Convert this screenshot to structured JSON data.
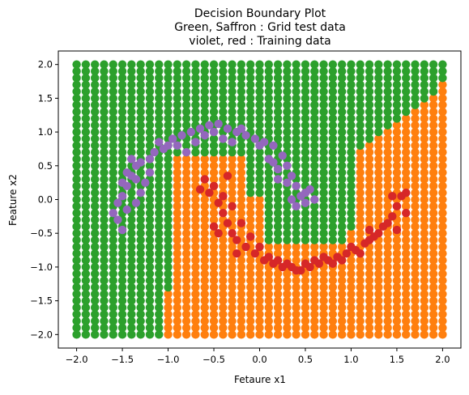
{
  "chart_data": {
    "type": "scatter",
    "title_lines": [
      "Decision Boundary Plot",
      "Green, Saffron : Grid test data",
      "violet, red : Training data"
    ],
    "xlabel": "Fetaure x1",
    "ylabel": "Feature x2",
    "xlim": [
      -2.2,
      2.2
    ],
    "ylim": [
      -2.2,
      2.2
    ],
    "x_ticks": [
      "−2.0",
      "−1.5",
      "−1.0",
      "−0.5",
      "0.0",
      "0.5",
      "1.0",
      "1.5",
      "2.0"
    ],
    "y_ticks": [
      "−2.0",
      "−1.5",
      "−1.0",
      "−0.5",
      "0.0",
      "0.5",
      "1.0",
      "1.5",
      "2.0"
    ],
    "grid": false,
    "grid_points": {
      "x_range": [
        -2.0,
        2.0
      ],
      "y_range": [
        -2.0,
        2.0
      ],
      "step": 0.1,
      "colors": {
        "class0": "#2ca02c",
        "class1": "#ff7f0e"
      }
    },
    "series": [
      {
        "color": "#9467bd",
        "points": [
          [
            -1.55,
            -0.05
          ],
          [
            -1.5,
            0.05
          ],
          [
            -1.45,
            0.2
          ],
          [
            -1.4,
            0.35
          ],
          [
            -1.35,
            0.5
          ],
          [
            -1.3,
            0.55
          ],
          [
            -1.2,
            0.6
          ],
          [
            -1.15,
            0.7
          ],
          [
            -1.05,
            0.75
          ],
          [
            -1.0,
            0.8
          ],
          [
            -0.95,
            0.9
          ],
          [
            -0.85,
            0.95
          ],
          [
            -0.75,
            1.0
          ],
          [
            -0.65,
            1.05
          ],
          [
            -0.55,
            1.1
          ],
          [
            -0.45,
            1.12
          ],
          [
            -0.35,
            1.05
          ],
          [
            -0.25,
            1.0
          ],
          [
            -0.15,
            0.95
          ],
          [
            -0.05,
            0.9
          ],
          [
            0.05,
            0.85
          ],
          [
            0.15,
            0.8
          ],
          [
            0.25,
            0.65
          ],
          [
            0.3,
            0.5
          ],
          [
            0.35,
            0.35
          ],
          [
            0.4,
            0.2
          ],
          [
            0.45,
            0.05
          ],
          [
            0.5,
            -0.05
          ],
          [
            0.55,
            0.15
          ],
          [
            0.6,
            0.0
          ],
          [
            -1.6,
            -0.2
          ],
          [
            -1.55,
            -0.3
          ],
          [
            -1.45,
            -0.15
          ],
          [
            -1.35,
            -0.05
          ],
          [
            -1.3,
            0.1
          ],
          [
            -1.25,
            0.25
          ],
          [
            -1.4,
            0.6
          ],
          [
            -1.1,
            0.85
          ],
          [
            -0.9,
            0.8
          ],
          [
            -0.7,
            0.85
          ],
          [
            -0.6,
            0.95
          ],
          [
            -0.4,
            0.9
          ],
          [
            -0.2,
            1.05
          ],
          [
            0.0,
            0.8
          ],
          [
            0.1,
            0.6
          ],
          [
            0.2,
            0.45
          ],
          [
            0.3,
            0.25
          ],
          [
            0.4,
            -0.1
          ],
          [
            0.5,
            0.1
          ],
          [
            -1.5,
            -0.45
          ],
          [
            -1.45,
            0.4
          ],
          [
            -1.2,
            0.4
          ],
          [
            -0.8,
            0.7
          ],
          [
            -0.5,
            1.0
          ],
          [
            0.2,
            0.3
          ],
          [
            0.35,
            0.0
          ],
          [
            -1.35,
            0.3
          ],
          [
            -1.5,
            0.25
          ],
          [
            -0.3,
            0.85
          ],
          [
            0.15,
            0.55
          ]
        ]
      },
      {
        "color": "#d62728",
        "points": [
          [
            -0.55,
            0.1
          ],
          [
            -0.45,
            -0.05
          ],
          [
            -0.4,
            -0.2
          ],
          [
            -0.35,
            -0.35
          ],
          [
            -0.3,
            -0.5
          ],
          [
            -0.25,
            -0.6
          ],
          [
            -0.15,
            -0.7
          ],
          [
            -0.05,
            -0.8
          ],
          [
            0.05,
            -0.9
          ],
          [
            0.15,
            -0.95
          ],
          [
            0.25,
            -1.0
          ],
          [
            0.35,
            -1.0
          ],
          [
            0.45,
            -1.05
          ],
          [
            0.55,
            -1.0
          ],
          [
            0.65,
            -0.95
          ],
          [
            0.75,
            -0.9
          ],
          [
            0.85,
            -0.85
          ],
          [
            0.95,
            -0.8
          ],
          [
            1.05,
            -0.75
          ],
          [
            1.15,
            -0.65
          ],
          [
            1.25,
            -0.55
          ],
          [
            1.35,
            -0.4
          ],
          [
            1.45,
            -0.25
          ],
          [
            1.5,
            -0.1
          ],
          [
            1.55,
            0.05
          ],
          [
            1.6,
            0.1
          ],
          [
            -0.6,
            0.3
          ],
          [
            -0.5,
            0.2
          ],
          [
            -0.4,
            0.05
          ],
          [
            -0.3,
            -0.1
          ],
          [
            -0.2,
            -0.35
          ],
          [
            -0.1,
            -0.55
          ],
          [
            0.0,
            -0.7
          ],
          [
            0.1,
            -0.85
          ],
          [
            0.2,
            -0.9
          ],
          [
            0.3,
            -0.95
          ],
          [
            0.5,
            -0.95
          ],
          [
            0.6,
            -0.9
          ],
          [
            0.7,
            -0.85
          ],
          [
            0.8,
            -0.95
          ],
          [
            0.9,
            -0.9
          ],
          [
            1.0,
            -0.7
          ],
          [
            1.1,
            -0.8
          ],
          [
            1.2,
            -0.6
          ],
          [
            1.3,
            -0.5
          ],
          [
            1.4,
            -0.35
          ],
          [
            1.5,
            -0.45
          ],
          [
            1.6,
            -0.2
          ],
          [
            -0.35,
            0.35
          ],
          [
            -0.5,
            -0.4
          ],
          [
            -0.45,
            -0.5
          ],
          [
            -0.25,
            -0.8
          ],
          [
            0.4,
            -1.05
          ],
          [
            1.2,
            -0.45
          ],
          [
            1.45,
            0.05
          ],
          [
            -0.65,
            0.15
          ]
        ]
      }
    ]
  }
}
